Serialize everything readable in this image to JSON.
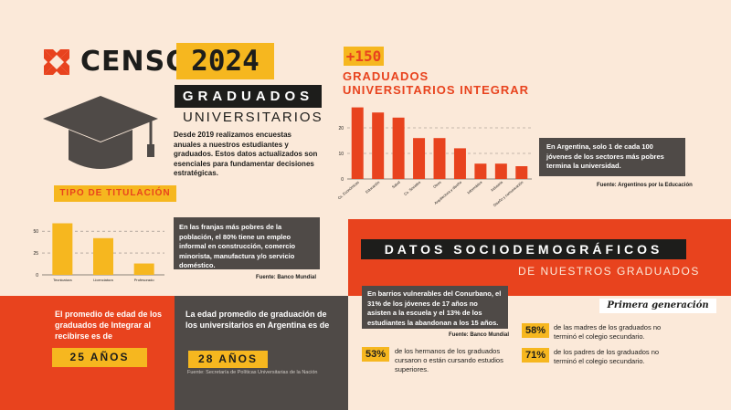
{
  "header": {
    "logo_text": "CENSO",
    "year": "2024",
    "title": "GRADUADOS",
    "subtitle": "UNIVERSITARIOS",
    "intro": "Desde 2019 realizamos encuestas anuales a nuestros estudiantes y graduados. Estos datos actualizados son esenciales para fundamentar decisiones estratégicas."
  },
  "titulacion": {
    "label": "TIPO DE TITULACIÓN",
    "note": "En las franjas más pobres de la población, el 80% tiene un empleo informal en construcción, comercio minorista, manufactura y/o servicio doméstico.",
    "source": "Fuente: Banco Mundial"
  },
  "graduados_chart": {
    "count": "+150",
    "title": "GRADUADOS UNIVERSITARIOS INTEGRAR",
    "note": "En Argentina, solo 1 de cada 100 jóvenes de los sectores más pobres termina la universidad.",
    "source": "Fuente: Argentinos por la Educación"
  },
  "edad": {
    "text": "El promedio de edad de los graduados de Integrar al recibirse es de",
    "value": "25 AÑOS"
  },
  "graduacion": {
    "text": "La edad promedio de graduación de los universitarios en Argentina es de",
    "value": "28 AÑOS",
    "source": "Fuente: Secretaría de Políticas Universitarias de la Nación"
  },
  "socio": {
    "title": "DATOS SOCIODEMOGRÁFICOS",
    "subtitle": "DE NUESTROS GRADUADOS",
    "note": "En barrios vulnerables del Conurbano, el 31% de los jóvenes de 17 años no asisten a la escuela y el 13% de los estudiantes la abandonan a los 15 años.",
    "source": "Fuente: Banco Mundial",
    "primera": "Primera generación",
    "stats": [
      {
        "pct": "53%",
        "text": "de los hermanos de los graduados cursaron o están cursando estudios superiores."
      },
      {
        "pct": "58%",
        "text": "de las madres de los graduados no terminó el colegio secundario."
      },
      {
        "pct": "71%",
        "text": "de los padres de los graduados no terminó el colegio secundario."
      }
    ]
  },
  "colors": {
    "orange": "#e8431e",
    "yellow": "#f6b71f",
    "dark": "#1d1d1b",
    "gray": "#4f4a47",
    "cream": "#fbe9d9"
  },
  "chart_data": [
    {
      "type": "bar",
      "categories": [
        "Tecnicatura",
        "Licenciatura",
        "Profesorado"
      ],
      "values": [
        59,
        42,
        13
      ],
      "ylim": [
        0,
        70
      ],
      "yticks": [
        0,
        25,
        50
      ],
      "grid": true
    },
    {
      "type": "bar",
      "categories": [
        "Cs. Económicas",
        "Educación",
        "Salud",
        "Cs. Sociales",
        "Otros",
        "Arquitectura y diseño",
        "Informática",
        "Industria",
        "Diseño y comunicación"
      ],
      "values": [
        28,
        26,
        24,
        16,
        16,
        12,
        6,
        6,
        5
      ],
      "ylim": [
        0,
        30
      ],
      "yticks": [
        0,
        10,
        20
      ],
      "grid": true
    }
  ]
}
